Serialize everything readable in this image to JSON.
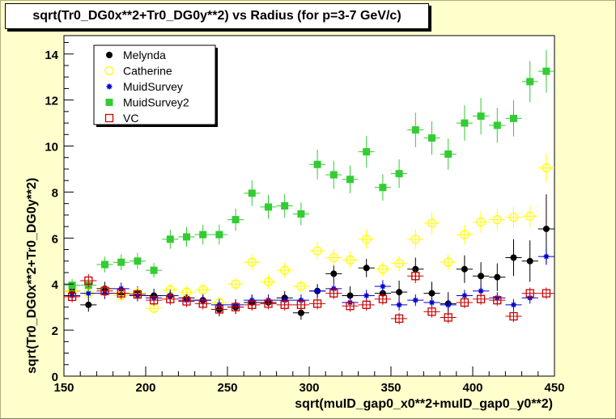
{
  "chart_data": {
    "type": "scatter",
    "title": "sqrt(Tr0_DG0x**2+Tr0_DG0y**2) vs Radius (for p=3-7 GeV/c)",
    "xlabel": "sqrt(muID_gap0_x0**2+muID_gap0_y0**2)",
    "ylabel": "sqrt(Tr0_DG0x**2+Tr0_DG0y**2)",
    "xlim": [
      150,
      450
    ],
    "ylim": [
      0,
      14.8
    ],
    "xticks": [
      150,
      200,
      250,
      300,
      350,
      400,
      450
    ],
    "yticks": [
      0,
      2,
      4,
      6,
      8,
      10,
      12,
      14
    ],
    "x_error": 5,
    "legend_position": "top-left",
    "x": [
      155,
      165,
      175,
      185,
      195,
      205,
      215,
      225,
      235,
      245,
      255,
      265,
      275,
      285,
      295,
      305,
      315,
      325,
      335,
      345,
      355,
      365,
      375,
      385,
      395,
      405,
      415,
      425,
      435,
      445
    ],
    "series": [
      {
        "name": "Melynda",
        "color": "#000000",
        "marker": "filled-circle",
        "y": [
          3.7,
          3.1,
          3.8,
          3.6,
          3.6,
          3.5,
          3.5,
          3.4,
          3.3,
          2.9,
          3.0,
          3.2,
          3.2,
          3.4,
          2.75,
          3.7,
          4.45,
          3.5,
          4.7,
          3.6,
          3.65,
          4.65,
          3.6,
          3.15,
          4.65,
          4.35,
          4.3,
          5.15,
          5.0,
          6.4
        ],
        "yerr": [
          0.3,
          0.3,
          0.3,
          0.3,
          0.3,
          0.3,
          0.3,
          0.3,
          0.3,
          0.3,
          0.3,
          0.3,
          0.3,
          0.3,
          0.3,
          0.3,
          0.4,
          0.4,
          0.4,
          0.4,
          0.5,
          0.5,
          0.5,
          0.5,
          0.6,
          0.6,
          0.6,
          0.8,
          0.9,
          1.5
        ]
      },
      {
        "name": "Catherine",
        "color": "#ffff00",
        "marker": "open-circle",
        "y": [
          3.7,
          3.6,
          3.7,
          3.5,
          3.6,
          2.95,
          3.75,
          3.65,
          3.75,
          3.2,
          4.0,
          4.95,
          4.1,
          4.6,
          3.9,
          5.45,
          5.15,
          5.05,
          5.95,
          4.65,
          4.9,
          5.95,
          6.65,
          4.95,
          6.15,
          6.7,
          6.8,
          6.9,
          6.95,
          9.05
        ]
      },
      {
        "name": "MuidSurvey",
        "color": "#0000cc",
        "marker": "star",
        "y": [
          3.5,
          3.6,
          3.6,
          3.8,
          3.5,
          3.4,
          3.5,
          3.3,
          3.3,
          3.1,
          3.1,
          3.3,
          3.3,
          3.3,
          3.3,
          3.7,
          3.8,
          3.2,
          3.5,
          3.9,
          3.1,
          3.3,
          3.2,
          3.1,
          3.5,
          3.7,
          3.4,
          3.1,
          3.4,
          5.2
        ]
      },
      {
        "name": "MuidSurvey2",
        "color": "#33cc33",
        "marker": "filled-square",
        "y": [
          3.95,
          3.95,
          4.85,
          4.95,
          5.0,
          4.6,
          5.95,
          6.05,
          6.15,
          6.15,
          6.8,
          7.95,
          7.35,
          7.4,
          7.05,
          9.2,
          8.75,
          8.55,
          9.75,
          8.2,
          8.8,
          10.7,
          10.35,
          9.65,
          11.0,
          11.3,
          10.9,
          11.2,
          12.8,
          13.25
        ]
      },
      {
        "name": "VC",
        "color": "#cc0000",
        "marker": "open-square",
        "y": [
          3.45,
          4.15,
          3.7,
          3.6,
          3.55,
          3.3,
          3.35,
          3.25,
          3.15,
          2.9,
          3.0,
          3.1,
          3.15,
          3.1,
          3.1,
          3.15,
          3.6,
          3.05,
          3.1,
          3.35,
          2.5,
          4.35,
          2.8,
          2.55,
          3.2,
          3.35,
          3.3,
          2.6,
          3.6,
          3.6
        ]
      }
    ]
  }
}
